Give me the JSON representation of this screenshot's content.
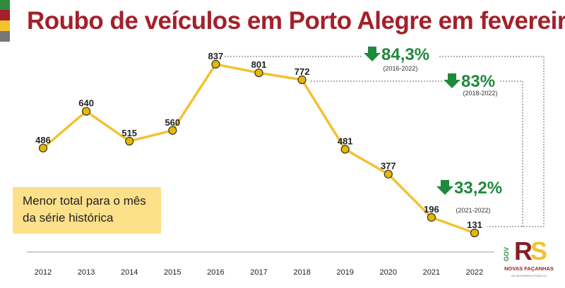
{
  "title": "Roubo de veículos em Porto Alegre em fevereiro",
  "note": "Menor total para o mês da série histórica",
  "colors": {
    "title": "#a3202a",
    "line": "#f2c230",
    "marker": "#e6b800",
    "green": "#1f8a3c",
    "note_bg": "#fde08a"
  },
  "annotations": [
    {
      "value": "84,3%",
      "period": "(2016-2022)",
      "icon": "arrow-down-icon"
    },
    {
      "value": "83%",
      "period": "(2018-2022)",
      "icon": "arrow-down-icon"
    },
    {
      "value": "33,2%",
      "period": "(2021-2022)",
      "icon": "arrow-down-icon"
    }
  ],
  "logo": {
    "gov": "GOV",
    "rs": "RS",
    "line1": "NOVAS FAÇANHAS",
    "line2": "NA SEGURANÇA PÚBLICA"
  },
  "chart_data": {
    "type": "line",
    "title": "Roubo de veículos em Porto Alegre em fevereiro",
    "categories": [
      "2012",
      "2013",
      "2014",
      "2015",
      "2016",
      "2017",
      "2018",
      "2019",
      "2020",
      "2021",
      "2022"
    ],
    "values": [
      486,
      640,
      515,
      560,
      837,
      801,
      772,
      481,
      377,
      196,
      131
    ],
    "xlabel": "",
    "ylabel": "",
    "grid": false
  }
}
